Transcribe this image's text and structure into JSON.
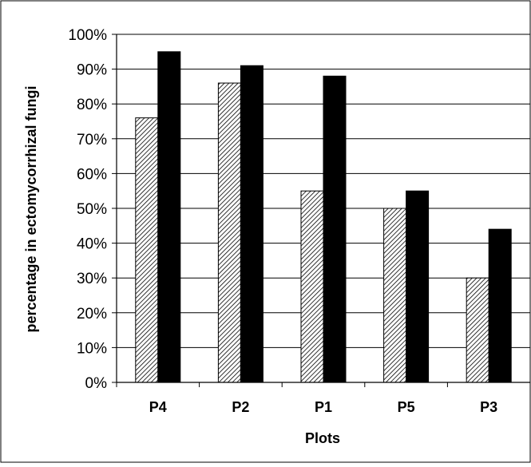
{
  "chart_data": {
    "type": "bar",
    "title": "",
    "xlabel": "Plots",
    "ylabel": "percentage in ectomycorrhizal fungi",
    "categories": [
      "P4",
      "P2",
      "P1",
      "P5",
      "P3"
    ],
    "series": [
      {
        "values": [
          76,
          86,
          55,
          50,
          30
        ],
        "fill": "hatched",
        "color": "#ffffff"
      },
      {
        "values": [
          95,
          91,
          88,
          55,
          44
        ],
        "fill": "solid",
        "color": "#000000"
      }
    ],
    "ylim": [
      0,
      100
    ],
    "yticks": [
      "0%",
      "10%",
      "20%",
      "30%",
      "40%",
      "50%",
      "60%",
      "70%",
      "80%",
      "90%",
      "100%"
    ],
    "grid": true,
    "legend": "none"
  }
}
